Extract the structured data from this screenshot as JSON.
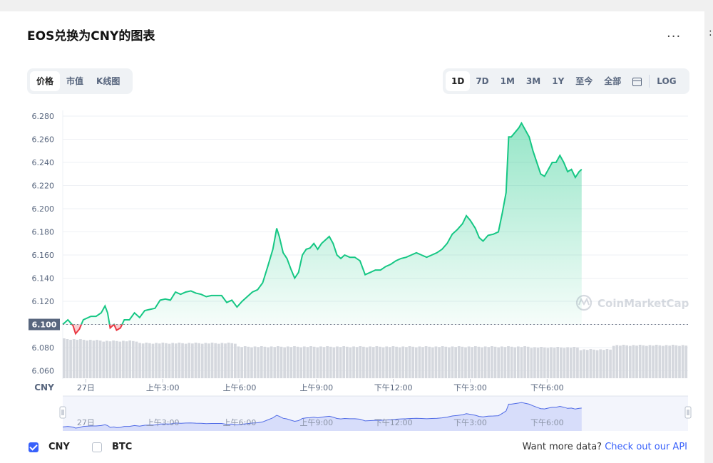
{
  "header": {
    "title": "EOS兑换为CNY的图表",
    "more_label": "..."
  },
  "tabs_left": [
    {
      "label": "价格",
      "active": true
    },
    {
      "label": "市值",
      "active": false
    },
    {
      "label": "K线图",
      "active": false
    }
  ],
  "tabs_right": [
    {
      "label": "1D",
      "active": true
    },
    {
      "label": "7D",
      "active": false
    },
    {
      "label": "1M",
      "active": false
    },
    {
      "label": "3M",
      "active": false
    },
    {
      "label": "1Y",
      "active": false
    },
    {
      "label": "至今",
      "active": false
    },
    {
      "label": "全部",
      "active": false
    }
  ],
  "calendar_icon": "calendar-icon",
  "log_label": "LOG",
  "watermark": "CoinMarketCap",
  "legend": [
    {
      "label": "CNY",
      "checked": true
    },
    {
      "label": "BTC",
      "checked": false
    }
  ],
  "api_text": "Want more data?",
  "api_link": "Check out our API",
  "colors": {
    "up": "#16c784",
    "down": "#ea3943",
    "accent": "#3861fb",
    "volume": "#d5d8de",
    "nav_fill": "#d7ddfa",
    "nav_line": "#4f6ae6"
  },
  "chart_data": {
    "type": "area",
    "currency_label": "CNY",
    "baseline": 6.1,
    "baseline_label": "6.100",
    "ylim": [
      6.05,
      6.285
    ],
    "y_ticks": [
      "6.280",
      "6.260",
      "6.240",
      "6.220",
      "6.200",
      "6.180",
      "6.160",
      "6.140",
      "6.120",
      "6.100",
      "6.080",
      "6.060"
    ],
    "x_range": [
      -0.9,
      23.5
    ],
    "x_ticks": [
      {
        "x": 0,
        "label": "27日"
      },
      {
        "x": 3,
        "label": "上午3:00"
      },
      {
        "x": 6,
        "label": "上午6:00"
      },
      {
        "x": 9,
        "label": "上午9:00"
      },
      {
        "x": 12,
        "label": "下午12:00"
      },
      {
        "x": 15,
        "label": "下午3:00"
      },
      {
        "x": 18,
        "label": "下午6:00"
      }
    ],
    "series": [
      {
        "values": [
          [
            -0.9,
            6.1
          ],
          [
            -0.7,
            6.104
          ],
          [
            -0.5,
            6.099
          ],
          [
            -0.4,
            6.092
          ],
          [
            -0.25,
            6.096
          ],
          [
            -0.1,
            6.104
          ],
          [
            0.2,
            6.107
          ],
          [
            0.4,
            6.107
          ],
          [
            0.6,
            6.11
          ],
          [
            0.75,
            6.116
          ],
          [
            0.85,
            6.11
          ],
          [
            0.95,
            6.097
          ],
          [
            1.1,
            6.1
          ],
          [
            1.2,
            6.095
          ],
          [
            1.35,
            6.097
          ],
          [
            1.5,
            6.104
          ],
          [
            1.7,
            6.104
          ],
          [
            1.9,
            6.11
          ],
          [
            2.1,
            6.106
          ],
          [
            2.3,
            6.112
          ],
          [
            2.5,
            6.113
          ],
          [
            2.7,
            6.114
          ],
          [
            2.9,
            6.121
          ],
          [
            3.1,
            6.122
          ],
          [
            3.3,
            6.121
          ],
          [
            3.5,
            6.128
          ],
          [
            3.7,
            6.126
          ],
          [
            3.9,
            6.128
          ],
          [
            4.1,
            6.129
          ],
          [
            4.3,
            6.127
          ],
          [
            4.5,
            6.126
          ],
          [
            4.7,
            6.124
          ],
          [
            4.9,
            6.125
          ],
          [
            5.1,
            6.125
          ],
          [
            5.3,
            6.125
          ],
          [
            5.5,
            6.119
          ],
          [
            5.7,
            6.121
          ],
          [
            5.9,
            6.115
          ],
          [
            6.1,
            6.12
          ],
          [
            6.3,
            6.124
          ],
          [
            6.5,
            6.128
          ],
          [
            6.7,
            6.13
          ],
          [
            6.9,
            6.136
          ],
          [
            7.1,
            6.15
          ],
          [
            7.3,
            6.165
          ],
          [
            7.45,
            6.183
          ],
          [
            7.55,
            6.176
          ],
          [
            7.7,
            6.162
          ],
          [
            7.85,
            6.157
          ],
          [
            8.0,
            6.148
          ],
          [
            8.15,
            6.14
          ],
          [
            8.3,
            6.145
          ],
          [
            8.45,
            6.16
          ],
          [
            8.6,
            6.165
          ],
          [
            8.75,
            6.166
          ],
          [
            8.9,
            6.17
          ],
          [
            9.05,
            6.165
          ],
          [
            9.2,
            6.17
          ],
          [
            9.35,
            6.173
          ],
          [
            9.5,
            6.176
          ],
          [
            9.65,
            6.17
          ],
          [
            9.8,
            6.16
          ],
          [
            9.95,
            6.157
          ],
          [
            10.1,
            6.16
          ],
          [
            10.3,
            6.158
          ],
          [
            10.5,
            6.158
          ],
          [
            10.7,
            6.155
          ],
          [
            10.9,
            6.143
          ],
          [
            11.1,
            6.145
          ],
          [
            11.3,
            6.147
          ],
          [
            11.5,
            6.147
          ],
          [
            11.7,
            6.15
          ],
          [
            11.9,
            6.152
          ],
          [
            12.1,
            6.155
          ],
          [
            12.3,
            6.157
          ],
          [
            12.5,
            6.158
          ],
          [
            12.7,
            6.16
          ],
          [
            12.9,
            6.162
          ],
          [
            13.1,
            6.16
          ],
          [
            13.3,
            6.158
          ],
          [
            13.5,
            6.16
          ],
          [
            13.7,
            6.162
          ],
          [
            13.9,
            6.165
          ],
          [
            14.1,
            6.17
          ],
          [
            14.3,
            6.178
          ],
          [
            14.5,
            6.182
          ],
          [
            14.7,
            6.187
          ],
          [
            14.85,
            6.194
          ],
          [
            15.0,
            6.19
          ],
          [
            15.2,
            6.183
          ],
          [
            15.35,
            6.175
          ],
          [
            15.5,
            6.172
          ],
          [
            15.7,
            6.177
          ],
          [
            15.9,
            6.178
          ],
          [
            16.1,
            6.18
          ],
          [
            16.25,
            6.196
          ],
          [
            16.4,
            6.214
          ],
          [
            16.5,
            6.262
          ],
          [
            16.6,
            6.262
          ],
          [
            16.75,
            6.266
          ],
          [
            16.9,
            6.27
          ],
          [
            17.0,
            6.274
          ],
          [
            17.15,
            6.268
          ],
          [
            17.3,
            6.262
          ],
          [
            17.45,
            6.25
          ],
          [
            17.6,
            6.24
          ],
          [
            17.75,
            6.23
          ],
          [
            17.9,
            6.228
          ],
          [
            18.05,
            6.234
          ],
          [
            18.2,
            6.24
          ],
          [
            18.35,
            6.24
          ],
          [
            18.5,
            6.246
          ],
          [
            18.65,
            6.24
          ],
          [
            18.8,
            6.232
          ],
          [
            18.95,
            6.234
          ],
          [
            19.1,
            6.227
          ],
          [
            19.25,
            6.232
          ],
          [
            19.35,
            6.234
          ]
        ]
      }
    ]
  }
}
